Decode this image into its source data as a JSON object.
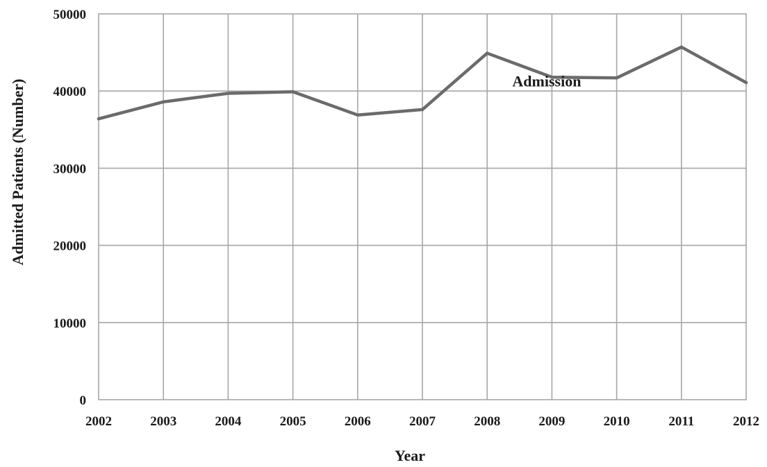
{
  "chart_data": {
    "type": "line",
    "title": "",
    "xlabel": "Year",
    "ylabel": "Admitted Patients (Number)",
    "x": [
      "2002",
      "2003",
      "2004",
      "2005",
      "2006",
      "2007",
      "2008",
      "2009",
      "2010",
      "2011",
      "2012"
    ],
    "series": [
      {
        "values": [
          36400,
          38600,
          39700,
          39900,
          36900,
          37600,
          44900,
          41800,
          41700,
          45700,
          41100
        ],
        "color": "#6b6b6b"
      }
    ],
    "ylim": [
      0,
      50000
    ],
    "yticks": [
      "0",
      "10000",
      "20000",
      "30000",
      "40000",
      "50000"
    ],
    "grid": true,
    "legend": "none",
    "annotations": [
      {
        "text": "Admission",
        "x": "2009",
        "y": 41300
      }
    ]
  }
}
